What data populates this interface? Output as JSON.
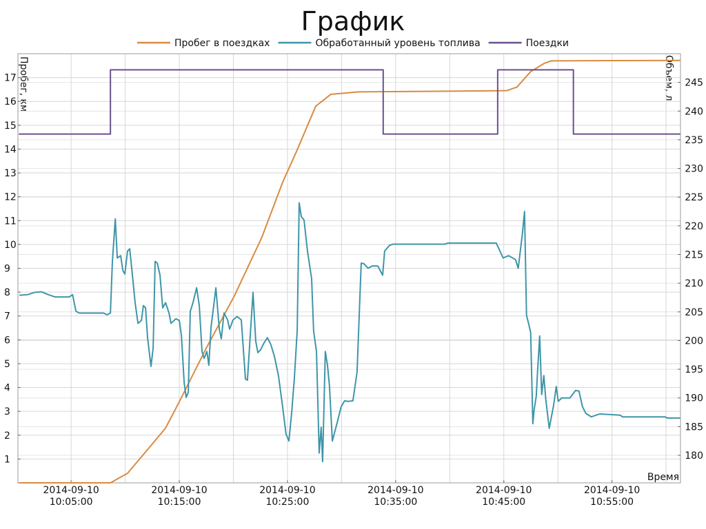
{
  "chart_data": {
    "type": "line",
    "title": "График",
    "ylabel": "Пробег, км",
    "y2label": "Объем, л",
    "xlabel": "Время",
    "legend": "top",
    "grid": true,
    "xlim": [
      "2014-09-10 10:00:05",
      "2014-09-10 11:01:20"
    ],
    "xticks": [
      "2014-09-10 10:05:00",
      "2014-09-10 10:15:00",
      "2014-09-10 10:25:00",
      "2014-09-10 10:35:00",
      "2014-09-10 10:45:00",
      "2014-09-10 10:55:00"
    ],
    "xminorticks": [
      "2014-09-10 10:10:00",
      "2014-09-10 10:20:00",
      "2014-09-10 10:30:00",
      "2014-09-10 10:40:00",
      "2014-09-10 10:50:00",
      "2014-09-10 11:00:00"
    ],
    "ylim": [
      0,
      18
    ],
    "yticks": [
      1,
      2,
      3,
      4,
      5,
      6,
      7,
      8,
      9,
      10,
      11,
      12,
      13,
      14,
      15,
      16,
      17
    ],
    "y2lim": [
      175.2,
      250
    ],
    "y2ticks": [
      180,
      185,
      190,
      195,
      200,
      205,
      210,
      215,
      220,
      225,
      230,
      235,
      240,
      245
    ],
    "series": [
      {
        "name": "Пробег в поездках",
        "color": "#d98a3f",
        "x": [
          "2014-09-10 10:00:10",
          "2014-09-10 10:08:38",
          "2014-09-10 10:10:13",
          "2014-09-10 10:12:27",
          "2014-09-10 10:13:44",
          "2014-09-10 10:15:00",
          "2014-09-10 10:17:33",
          "2014-09-10 10:20:06",
          "2014-09-10 10:22:38",
          "2014-09-10 10:24:33",
          "2014-09-10 10:25:50",
          "2014-09-10 10:27:37",
          "2014-09-10 10:29:01",
          "2014-09-10 10:31:34",
          "2014-09-10 10:45:15",
          "2014-09-10 10:46:13",
          "2014-09-10 10:47:29",
          "2014-09-10 10:48:45",
          "2014-09-10 10:49:24",
          "2014-09-10 11:01:18"
        ],
        "values": [
          0,
          0,
          0.4,
          1.6,
          2.3,
          3.4,
          5.7,
          7.85,
          10.3,
          12.6,
          13.9,
          15.8,
          16.3,
          16.4,
          16.45,
          16.6,
          17.25,
          17.6,
          17.7,
          17.72
        ]
      },
      {
        "name": "Обработанный уровень топлива",
        "color": "#3d95a8",
        "axis": "y2",
        "x": [
          "2014-09-10 10:00:13",
          "2014-09-10 10:00:59",
          "2014-09-10 10:01:37",
          "2014-09-10 10:02:16",
          "2014-09-10 10:02:54",
          "2014-09-10 10:03:32",
          "2014-09-10 10:04:49",
          "2014-09-10 10:05:08",
          "2014-09-10 10:05:27",
          "2014-09-10 10:05:46",
          "2014-09-10 10:08:00",
          "2014-09-10 10:08:19",
          "2014-09-10 10:08:38",
          "2014-09-10 10:08:49",
          "2014-09-10 10:09:05",
          "2014-09-10 10:09:16",
          "2014-09-10 10:09:35",
          "2014-09-10 10:09:47",
          "2014-09-10 10:09:58",
          "2014-09-10 10:10:13",
          "2014-09-10 10:10:25",
          "2014-09-10 10:10:40",
          "2014-09-10 10:10:55",
          "2014-09-10 10:11:11",
          "2014-09-10 10:11:30",
          "2014-09-10 10:11:41",
          "2014-09-10 10:11:53",
          "2014-09-10 10:12:04",
          "2014-09-10 10:12:23",
          "2014-09-10 10:12:35",
          "2014-09-10 10:12:46",
          "2014-09-10 10:12:58",
          "2014-09-10 10:13:13",
          "2014-09-10 10:13:28",
          "2014-09-10 10:13:44",
          "2014-09-10 10:14:03",
          "2014-09-10 10:14:14",
          "2014-09-10 10:14:41",
          "2014-09-10 10:15:00",
          "2014-09-10 10:15:12",
          "2014-09-10 10:15:27",
          "2014-09-10 10:15:38",
          "2014-09-10 10:15:50",
          "2014-09-10 10:16:01",
          "2014-09-10 10:16:16",
          "2014-09-10 10:16:36",
          "2014-09-10 10:16:51",
          "2014-09-10 10:17:06",
          "2014-09-10 10:17:18",
          "2014-09-10 10:17:33",
          "2014-09-10 10:17:44",
          "2014-09-10 10:17:56",
          "2014-09-10 10:18:23",
          "2014-09-10 10:18:42",
          "2014-09-10 10:18:53",
          "2014-09-10 10:19:08",
          "2014-09-10 10:19:28",
          "2014-09-10 10:19:39",
          "2014-09-10 10:19:58",
          "2014-09-10 10:20:21",
          "2014-09-10 10:20:44",
          "2014-09-10 10:21:07",
          "2014-09-10 10:21:18",
          "2014-09-10 10:21:34",
          "2014-09-10 10:21:49",
          "2014-09-10 10:22:04",
          "2014-09-10 10:22:16",
          "2014-09-10 10:22:31",
          "2014-09-10 10:22:50",
          "2014-09-10 10:23:09",
          "2014-09-10 10:23:28",
          "2014-09-10 10:23:48",
          "2014-09-10 10:24:10",
          "2014-09-10 10:24:33",
          "2014-09-10 10:24:52",
          "2014-09-10 10:25:08",
          "2014-09-10 10:25:23",
          "2014-09-10 10:25:38",
          "2014-09-10 10:25:54",
          "2014-09-10 10:26:05",
          "2014-09-10 10:26:17",
          "2014-09-10 10:26:32",
          "2014-09-10 10:26:51",
          "2014-09-10 10:27:14",
          "2014-09-10 10:27:25",
          "2014-09-10 10:27:41",
          "2014-09-10 10:27:56",
          "2014-09-10 10:28:07",
          "2014-09-10 10:28:15",
          "2014-09-10 10:28:30",
          "2014-09-10 10:28:42",
          "2014-09-10 10:28:53",
          "2014-09-10 10:29:09",
          "2014-09-10 10:29:24",
          "2014-09-10 10:29:39",
          "2014-09-10 10:29:58",
          "2014-09-10 10:30:17",
          "2014-09-10 10:30:36",
          "2014-09-10 10:31:03",
          "2014-09-10 10:31:26",
          "2014-09-10 10:31:49",
          "2014-09-10 10:32:04",
          "2014-09-10 10:32:27",
          "2014-09-10 10:32:50",
          "2014-09-10 10:33:21",
          "2014-09-10 10:33:48",
          "2014-09-10 10:33:59",
          "2014-09-10 10:34:26",
          "2014-09-10 10:34:45",
          "2014-09-10 10:39:31",
          "2014-09-10 10:39:51",
          "2014-09-10 10:44:18",
          "2014-09-10 10:44:56",
          "2014-09-10 10:45:27",
          "2014-09-10 10:46:05",
          "2014-09-10 10:46:20",
          "2014-09-10 10:46:43",
          "2014-09-10 10:46:55",
          "2014-09-10 10:47:06",
          "2014-09-10 10:47:18",
          "2014-09-10 10:47:29",
          "2014-09-10 10:47:41",
          "2014-09-10 10:47:48",
          "2014-09-10 10:48:00",
          "2014-09-10 10:48:07",
          "2014-09-10 10:48:19",
          "2014-09-10 10:48:30",
          "2014-09-10 10:48:42",
          "2014-09-10 10:48:53",
          "2014-09-10 10:49:12",
          "2014-09-10 10:49:35",
          "2014-09-10 10:49:51",
          "2014-09-10 10:50:02",
          "2014-09-10 10:50:21",
          "2014-09-10 10:51:07",
          "2014-09-10 10:51:38",
          "2014-09-10 10:51:57",
          "2014-09-10 10:52:16",
          "2014-09-10 10:52:35",
          "2014-09-10 10:53:06",
          "2014-09-10 10:53:32",
          "2014-09-10 10:53:51",
          "2014-09-10 10:55:46",
          "2014-09-10 10:55:58",
          "2014-09-10 10:59:55",
          "2014-09-10 11:00:06",
          "2014-09-10 11:01:18"
        ],
        "values": [
          207.9,
          208.0,
          208.4,
          208.5,
          208.0,
          207.6,
          207.6,
          208.0,
          205.1,
          204.8,
          204.8,
          204.5,
          204.8,
          213.8,
          221.2,
          214.4,
          214.8,
          212.2,
          211.6,
          215.6,
          216.0,
          211.4,
          206.6,
          203.0,
          203.5,
          206.1,
          205.7,
          200.5,
          195.5,
          198.7,
          213.8,
          213.5,
          211.4,
          205.7,
          206.6,
          204.8,
          203.0,
          203.8,
          203.5,
          200.8,
          192.7,
          190.1,
          191.0,
          205.1,
          206.6,
          209.2,
          206.1,
          198.1,
          196.9,
          198.1,
          195.7,
          202.3,
          209.2,
          202.0,
          200.3,
          204.8,
          203.6,
          202.0,
          203.6,
          204.2,
          203.6,
          193.3,
          193.1,
          201.1,
          208.4,
          199.9,
          197.9,
          198.4,
          199.6,
          200.5,
          199.3,
          197.2,
          193.9,
          188.5,
          183.7,
          182.5,
          187.3,
          193.3,
          201.7,
          224.0,
          221.6,
          221.0,
          215.6,
          210.8,
          201.7,
          198.1,
          180.4,
          184.9,
          178.9,
          198.1,
          195.7,
          192.1,
          182.5,
          184.3,
          186.1,
          188.5,
          189.5,
          189.4,
          189.5,
          194.5,
          213.5,
          213.4,
          212.6,
          213.0,
          213.0,
          211.4,
          215.6,
          216.6,
          216.8,
          216.8,
          217.0,
          217.0,
          214.4,
          214.8,
          214.1,
          212.6,
          218.6,
          222.5,
          204.4,
          202.9,
          201.4,
          185.5,
          187.9,
          190.3,
          194.5,
          200.8,
          190.6,
          193.9,
          189.7,
          184.7,
          188.5,
          192.0,
          189.4,
          190.0,
          190.0,
          191.3,
          191.2,
          188.5,
          187.3,
          186.7,
          187.0,
          187.2,
          187.0,
          186.7,
          186.7,
          186.5,
          186.5
        ]
      },
      {
        "name": "Поездки",
        "color": "#6a4f8c",
        "axis": "y2",
        "step": "post",
        "x": [
          "2014-09-10 10:00:10",
          "2014-09-10 10:08:38",
          "2014-09-10 10:33:51",
          "2014-09-10 10:44:26",
          "2014-09-10 10:51:26",
          "2014-09-10 11:01:18"
        ],
        "values": [
          236,
          247.2,
          236,
          247.2,
          236,
          236
        ]
      }
    ]
  }
}
